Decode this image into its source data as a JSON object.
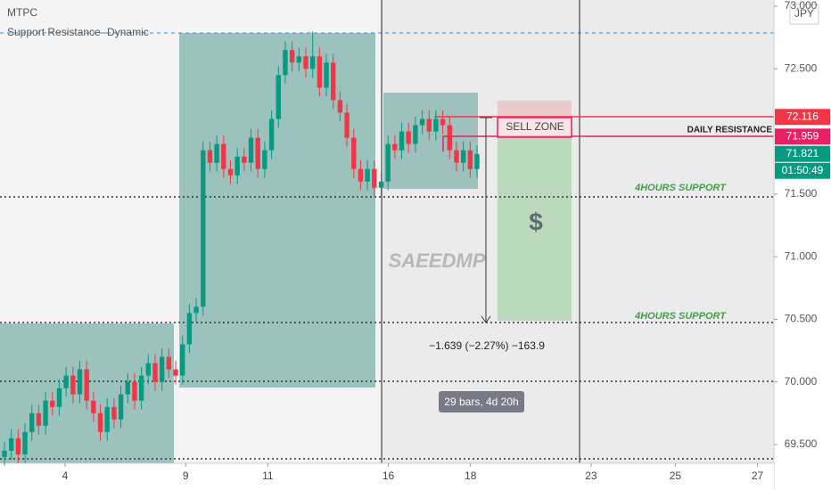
{
  "header": {
    "symbol": "MTPC",
    "indicator": "Support Resistance -Dynamic",
    "currency": "JPY"
  },
  "chart_data": {
    "type": "candlestick",
    "xlim": [
      0,
      113
    ],
    "ylim": [
      69.35,
      73.05
    ],
    "xticks": [
      {
        "value": 9.5,
        "label": "4"
      },
      {
        "value": 27.1,
        "label": "9"
      },
      {
        "value": 39.1,
        "label": "11"
      },
      {
        "value": 56.7,
        "label": "16"
      },
      {
        "value": 68.7,
        "label": "18"
      },
      {
        "value": 86.3,
        "label": "23"
      },
      {
        "value": 98.6,
        "label": "25"
      },
      {
        "value": 110.6,
        "label": "27"
      }
    ],
    "yticks": [
      {
        "value": 73,
        "label": "73.000"
      },
      {
        "value": 72.5,
        "label": "72.500"
      },
      {
        "value": 71.5,
        "label": "71.500"
      },
      {
        "value": 71,
        "label": "71.000"
      },
      {
        "value": 70.5,
        "label": "70.500"
      },
      {
        "value": 70,
        "label": "70.000"
      },
      {
        "value": 69.5,
        "label": "69.500"
      }
    ],
    "up_color": "#089981",
    "down_color": "#f23645",
    "open": [
      69.4,
      69.45,
      69.55,
      69.42,
      69.6,
      69.75,
      69.65,
      69.85,
      69.8,
      69.95,
      70.05,
      69.9,
      70.1,
      69.85,
      69.75,
      69.6,
      69.8,
      69.7,
      69.9,
      70.0,
      69.85,
      70.05,
      70.15,
      70.0,
      70.2,
      70.1,
      70.05,
      70.3,
      70.55,
      70.6,
      71.85,
      71.75,
      71.9,
      71.7,
      71.65,
      71.8,
      71.75,
      71.95,
      71.7,
      71.85,
      72.1,
      72.45,
      72.65,
      72.55,
      72.6,
      72.5,
      72.6,
      72.35,
      72.55,
      72.25,
      72.15,
      71.95,
      71.7,
      71.6,
      71.7,
      71.55,
      71.6,
      71.9,
      71.85,
      72.0,
      71.9,
      72.05,
      72.1,
      72.0,
      72.1,
      72.05,
      71.85,
      71.75,
      71.85,
      71.7
    ],
    "high": [
      69.52,
      69.62,
      69.62,
      69.67,
      69.82,
      69.82,
      69.92,
      69.92,
      70.02,
      70.12,
      70.12,
      70.17,
      70.17,
      69.92,
      69.82,
      69.87,
      69.87,
      69.97,
      70.07,
      70.07,
      70.12,
      70.22,
      70.22,
      70.27,
      70.27,
      70.17,
      70.37,
      70.62,
      70.67,
      71.92,
      71.92,
      71.97,
      71.97,
      71.77,
      71.87,
      71.87,
      72.02,
      72.02,
      71.92,
      72.17,
      72.52,
      72.72,
      72.72,
      72.67,
      72.67,
      72.8,
      72.67,
      72.62,
      72.62,
      72.32,
      72.22,
      72.02,
      71.77,
      71.77,
      71.77,
      71.67,
      71.97,
      71.97,
      72.07,
      72.07,
      72.12,
      72.17,
      72.17,
      72.17,
      72.17,
      72.12,
      71.92,
      71.92,
      71.92,
      71.89
    ],
    "low": [
      69.33,
      69.38,
      69.35,
      69.35,
      69.53,
      69.58,
      69.58,
      69.73,
      69.73,
      69.88,
      69.83,
      69.83,
      69.78,
      69.68,
      69.53,
      69.53,
      69.63,
      69.63,
      69.83,
      69.78,
      69.78,
      69.98,
      69.93,
      69.93,
      70.03,
      69.98,
      69.98,
      70.23,
      70.48,
      70.53,
      71.68,
      71.68,
      71.63,
      71.58,
      71.58,
      71.68,
      71.68,
      71.63,
      71.63,
      71.78,
      72.03,
      72.38,
      72.48,
      72.48,
      72.43,
      72.43,
      72.28,
      72.28,
      72.18,
      72.08,
      71.88,
      71.63,
      71.53,
      71.53,
      71.48,
      71.48,
      71.53,
      71.78,
      71.78,
      71.83,
      71.83,
      71.98,
      71.93,
      71.93,
      71.98,
      71.78,
      71.68,
      71.68,
      71.63,
      71.63
    ],
    "close": [
      69.45,
      69.55,
      69.42,
      69.6,
      69.75,
      69.65,
      69.85,
      69.8,
      69.95,
      70.05,
      69.9,
      70.1,
      69.85,
      69.75,
      69.6,
      69.8,
      69.7,
      69.9,
      70.0,
      69.85,
      70.05,
      70.15,
      70.0,
      70.2,
      70.1,
      70.05,
      70.3,
      70.55,
      70.6,
      71.85,
      71.75,
      71.9,
      71.7,
      71.65,
      71.8,
      71.75,
      71.95,
      71.7,
      71.85,
      72.1,
      72.45,
      72.65,
      72.55,
      72.6,
      72.5,
      72.6,
      72.35,
      72.55,
      72.25,
      72.15,
      71.95,
      71.7,
      71.6,
      71.7,
      71.55,
      71.6,
      71.9,
      71.85,
      72.0,
      71.9,
      72.05,
      72.1,
      72.0,
      72.1,
      72.05,
      71.85,
      71.75,
      71.85,
      71.7,
      71.82
    ],
    "price_labels": [
      {
        "value": 72.116,
        "color": "#f23645"
      },
      {
        "value": 71.959,
        "color": "#e91e63"
      },
      {
        "value": 71.821,
        "color": "#089981"
      }
    ],
    "countdown": "01:50:49",
    "annotations": {
      "support_upper": "4HOURS SUPPORT",
      "support_lower": "4HOURS SUPPORT",
      "resistance": "DAILY RESISTANCE",
      "sell_zone": "SELL ZONE",
      "watermark": "SAEEDMP",
      "dollar": "$",
      "measure": "−1.639 (−2.27%) −163.9",
      "bars": "29 bars, 4d 20h"
    }
  }
}
